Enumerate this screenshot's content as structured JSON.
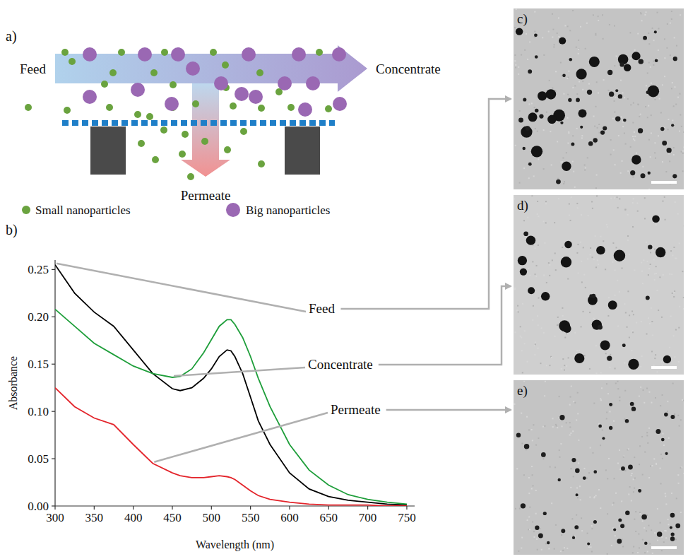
{
  "chart_data": {
    "type": "line",
    "panel_label": "b)",
    "xlabel": "Wavelength (nm)",
    "ylabel": "Absorbance",
    "x": [
      300,
      325,
      350,
      375,
      400,
      425,
      450,
      460,
      475,
      490,
      500,
      510,
      520,
      525,
      530,
      540,
      550,
      560,
      575,
      600,
      625,
      650,
      675,
      700,
      725,
      750
    ],
    "xlim": [
      300,
      760
    ],
    "xticks": [
      300,
      350,
      400,
      450,
      500,
      550,
      600,
      650,
      700,
      750
    ],
    "ylim": [
      0,
      0.26
    ],
    "yticks": [
      {
        "value": 0,
        "label": "0.00"
      },
      0.05,
      {
        "value": 0.1,
        "label": "0.10"
      },
      0.15,
      {
        "value": 0.2,
        "label": "0.20"
      },
      0.25
    ],
    "grid": false,
    "series": [
      {
        "name": "Feed",
        "color": "#000000",
        "values": [
          0.255,
          0.225,
          0.205,
          0.19,
          0.165,
          0.14,
          0.124,
          0.122,
          0.125,
          0.135,
          0.145,
          0.158,
          0.165,
          0.164,
          0.158,
          0.14,
          0.115,
          0.09,
          0.065,
          0.035,
          0.018,
          0.01,
          0.006,
          0.004,
          0.002,
          0.001
        ]
      },
      {
        "name": "Concentrate",
        "color": "#1e9e3a",
        "values": [
          0.208,
          0.19,
          0.172,
          0.16,
          0.148,
          0.14,
          0.136,
          0.137,
          0.145,
          0.162,
          0.176,
          0.19,
          0.197,
          0.197,
          0.192,
          0.178,
          0.158,
          0.135,
          0.105,
          0.065,
          0.038,
          0.022,
          0.012,
          0.007,
          0.004,
          0.002
        ]
      },
      {
        "name": "Permeate",
        "color": "#e3242b",
        "values": [
          0.125,
          0.105,
          0.093,
          0.086,
          0.065,
          0.045,
          0.035,
          0.032,
          0.03,
          0.03,
          0.031,
          0.032,
          0.031,
          0.03,
          0.028,
          0.022,
          0.016,
          0.011,
          0.007,
          0.004,
          0.002,
          0.001,
          0.001,
          0.001,
          0,
          0
        ]
      }
    ]
  },
  "schematic": {
    "label": "a)",
    "feed": "Feed",
    "concentrate": "Concentrate",
    "permeate": "Permeate",
    "key_items": [
      {
        "name": "Small nanoparticles",
        "color": "#6aa33f"
      },
      {
        "name": "Big nanoparticles",
        "color": "#9a68b3"
      }
    ]
  },
  "images": [
    {
      "label": "c)"
    },
    {
      "label": "d)"
    },
    {
      "label": "e)"
    }
  ]
}
